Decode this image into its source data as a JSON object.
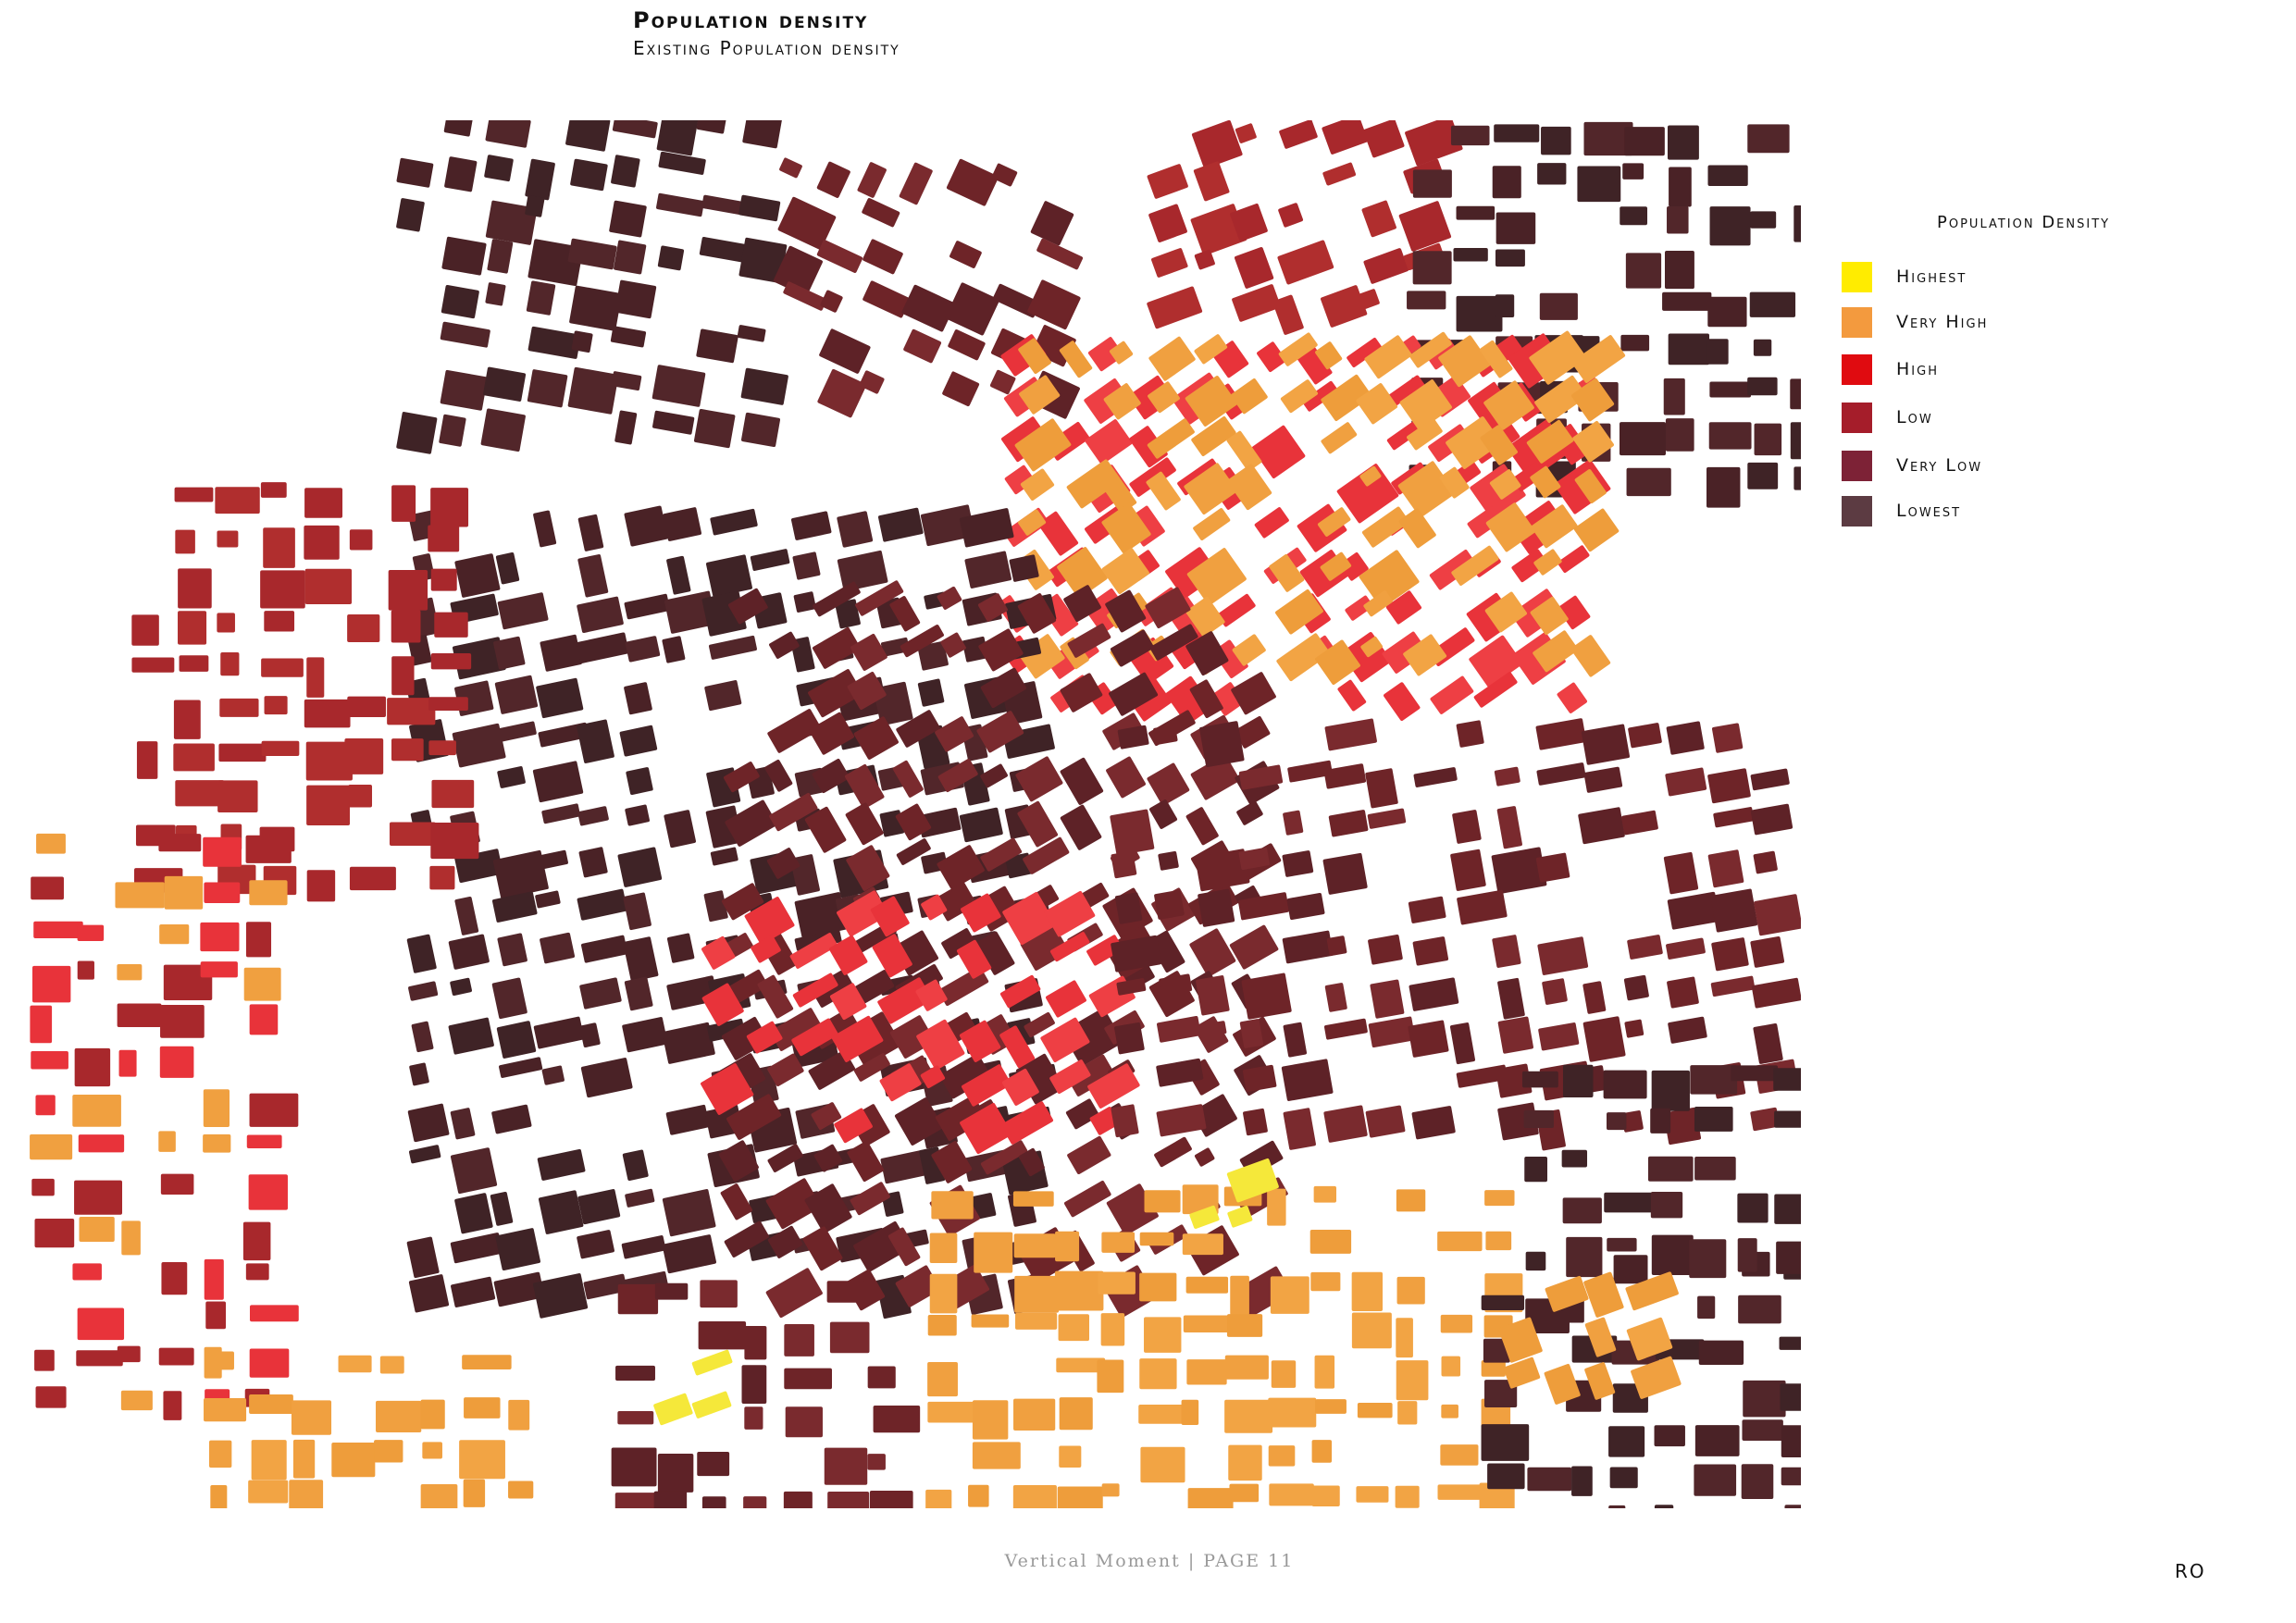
{
  "header": {
    "title": "Population density",
    "subtitle": "Existing Population density"
  },
  "legend": {
    "title": "Population Density",
    "items": [
      {
        "label": "Highest",
        "color": "#ffec00"
      },
      {
        "label": "Very High",
        "color": "#f39a3e"
      },
      {
        "label": "High",
        "color": "#e00b10"
      },
      {
        "label": "Low",
        "color": "#a51d2a"
      },
      {
        "label": "Very Low",
        "color": "#7d2236"
      },
      {
        "label": "Lowest",
        "color": "#5c3b42"
      }
    ]
  },
  "footer": {
    "text": "Vertical Moment | PAGE 11",
    "initials": "RO"
  }
}
